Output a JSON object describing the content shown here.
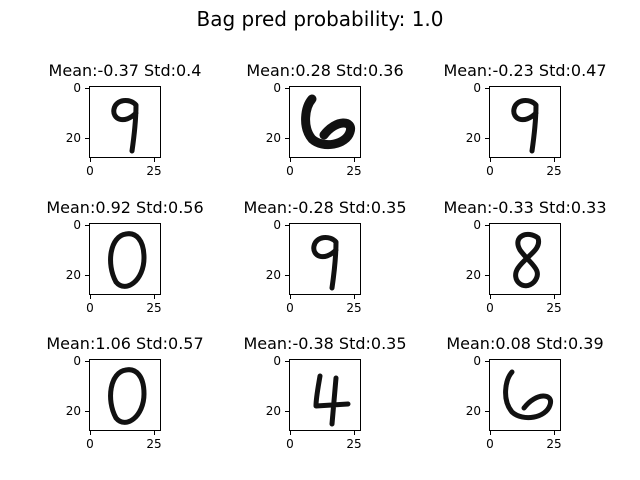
{
  "chart_data": {
    "type": "image_grid",
    "title": "Bag pred probability: 1.0",
    "ticks": {
      "x": [
        "0",
        "25"
      ],
      "y": [
        "0",
        "20"
      ]
    },
    "panels": [
      {
        "title": "Mean:-0.37 Std:0.4",
        "digit": "9"
      },
      {
        "title": "Mean:0.28 Std:0.36",
        "digit": "6"
      },
      {
        "title": "Mean:-0.23 Std:0.47",
        "digit": "9"
      },
      {
        "title": "Mean:0.92 Std:0.56",
        "digit": "0"
      },
      {
        "title": "Mean:-0.28 Std:0.35",
        "digit": "9"
      },
      {
        "title": "Mean:-0.33 Std:0.33",
        "digit": "8"
      },
      {
        "title": "Mean:1.06 Std:0.57",
        "digit": "0"
      },
      {
        "title": "Mean:-0.38 Std:0.35",
        "digit": "4"
      },
      {
        "title": "Mean:0.08 Std:0.39",
        "digit": "6"
      }
    ]
  }
}
